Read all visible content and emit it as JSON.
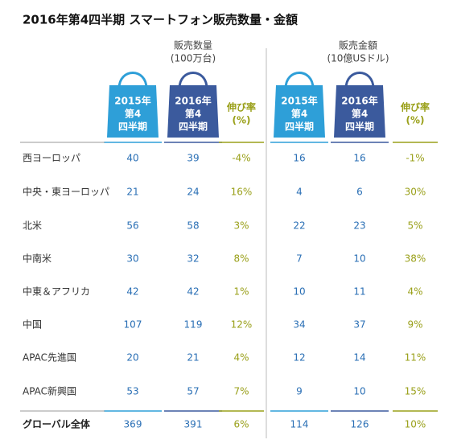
{
  "header": {
    "title": "2016年第4四半期  スマートフォン販売数量・金額"
  },
  "groups": [
    {
      "title": "販売数量",
      "unit": "(100万台)",
      "columns": [
        [
          "2015年",
          "第4",
          "四半期"
        ],
        [
          "2016年",
          "第4",
          "四半期"
        ],
        [
          "伸び率",
          "(%)"
        ]
      ]
    },
    {
      "title": "販売金額",
      "unit": "(10億USドル)",
      "columns": [
        [
          "2015年",
          "第4",
          "四半期"
        ],
        [
          "2016年",
          "第4",
          "四半期"
        ],
        [
          "伸び率",
          "(%)"
        ]
      ]
    }
  ],
  "table": {
    "rows": [
      {
        "label": "西ヨーロッパ",
        "values": [
          "40",
          "39",
          "-4%",
          "16",
          "16",
          "-1%"
        ]
      },
      {
        "label": "中央・東ヨーロッパ",
        "values": [
          "21",
          "24",
          "16%",
          "4",
          "6",
          "30%"
        ]
      },
      {
        "label": "北米",
        "values": [
          "56",
          "58",
          "3%",
          "22",
          "23",
          "5%"
        ]
      },
      {
        "label": "中南米",
        "values": [
          "30",
          "32",
          "8%",
          "7",
          "10",
          "38%"
        ]
      },
      {
        "label": "中東＆アフリカ",
        "values": [
          "42",
          "42",
          "1%",
          "10",
          "11",
          "4%"
        ]
      },
      {
        "label": "中国",
        "values": [
          "107",
          "119",
          "12%",
          "34",
          "37",
          "9%"
        ]
      },
      {
        "label": "APAC先進国",
        "values": [
          "20",
          "21",
          "4%",
          "12",
          "14",
          "11%"
        ]
      },
      {
        "label": "APAC新興国",
        "values": [
          "53",
          "57",
          "7%",
          "9",
          "10",
          "15%"
        ]
      }
    ],
    "total": {
      "label": "グローバル全体",
      "values": [
        "369",
        "391",
        "6%",
        "114",
        "126",
        "10%"
      ]
    }
  }
}
